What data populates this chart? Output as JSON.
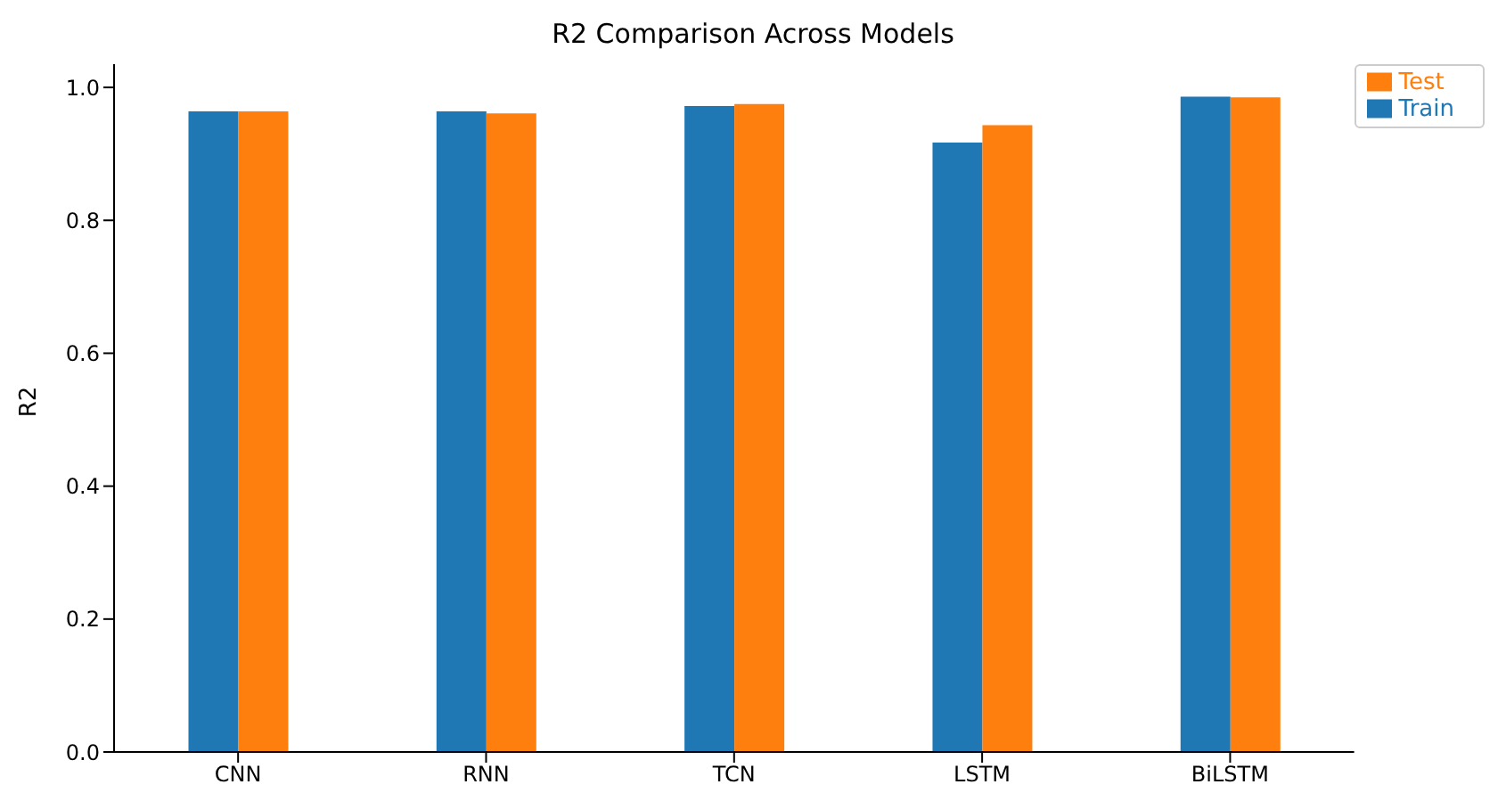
{
  "chart_data": {
    "type": "bar",
    "title": "R2 Comparison Across Models",
    "ylabel": "R2",
    "categories": [
      "CNN",
      "RNN",
      "TCN",
      "LSTM",
      "BiLSTM"
    ],
    "series": [
      {
        "name": "Train",
        "color": "#1f77b4",
        "values": [
          0.964,
          0.964,
          0.972,
          0.917,
          0.986
        ]
      },
      {
        "name": "Test",
        "color": "#ff7f0e",
        "values": [
          0.964,
          0.961,
          0.975,
          0.943,
          0.985
        ]
      }
    ],
    "ylim": [
      0,
      1.035
    ],
    "yticks": [
      {
        "value": 0,
        "label": "0.0"
      },
      {
        "value": 0.2,
        "label": "0.2"
      },
      {
        "value": 0.4,
        "label": "0.4"
      },
      {
        "value": 0.6,
        "label": "0.6"
      },
      {
        "value": 0.8,
        "label": "0.8"
      },
      {
        "value": 1,
        "label": "1.0"
      }
    ],
    "legend": "top right"
  }
}
